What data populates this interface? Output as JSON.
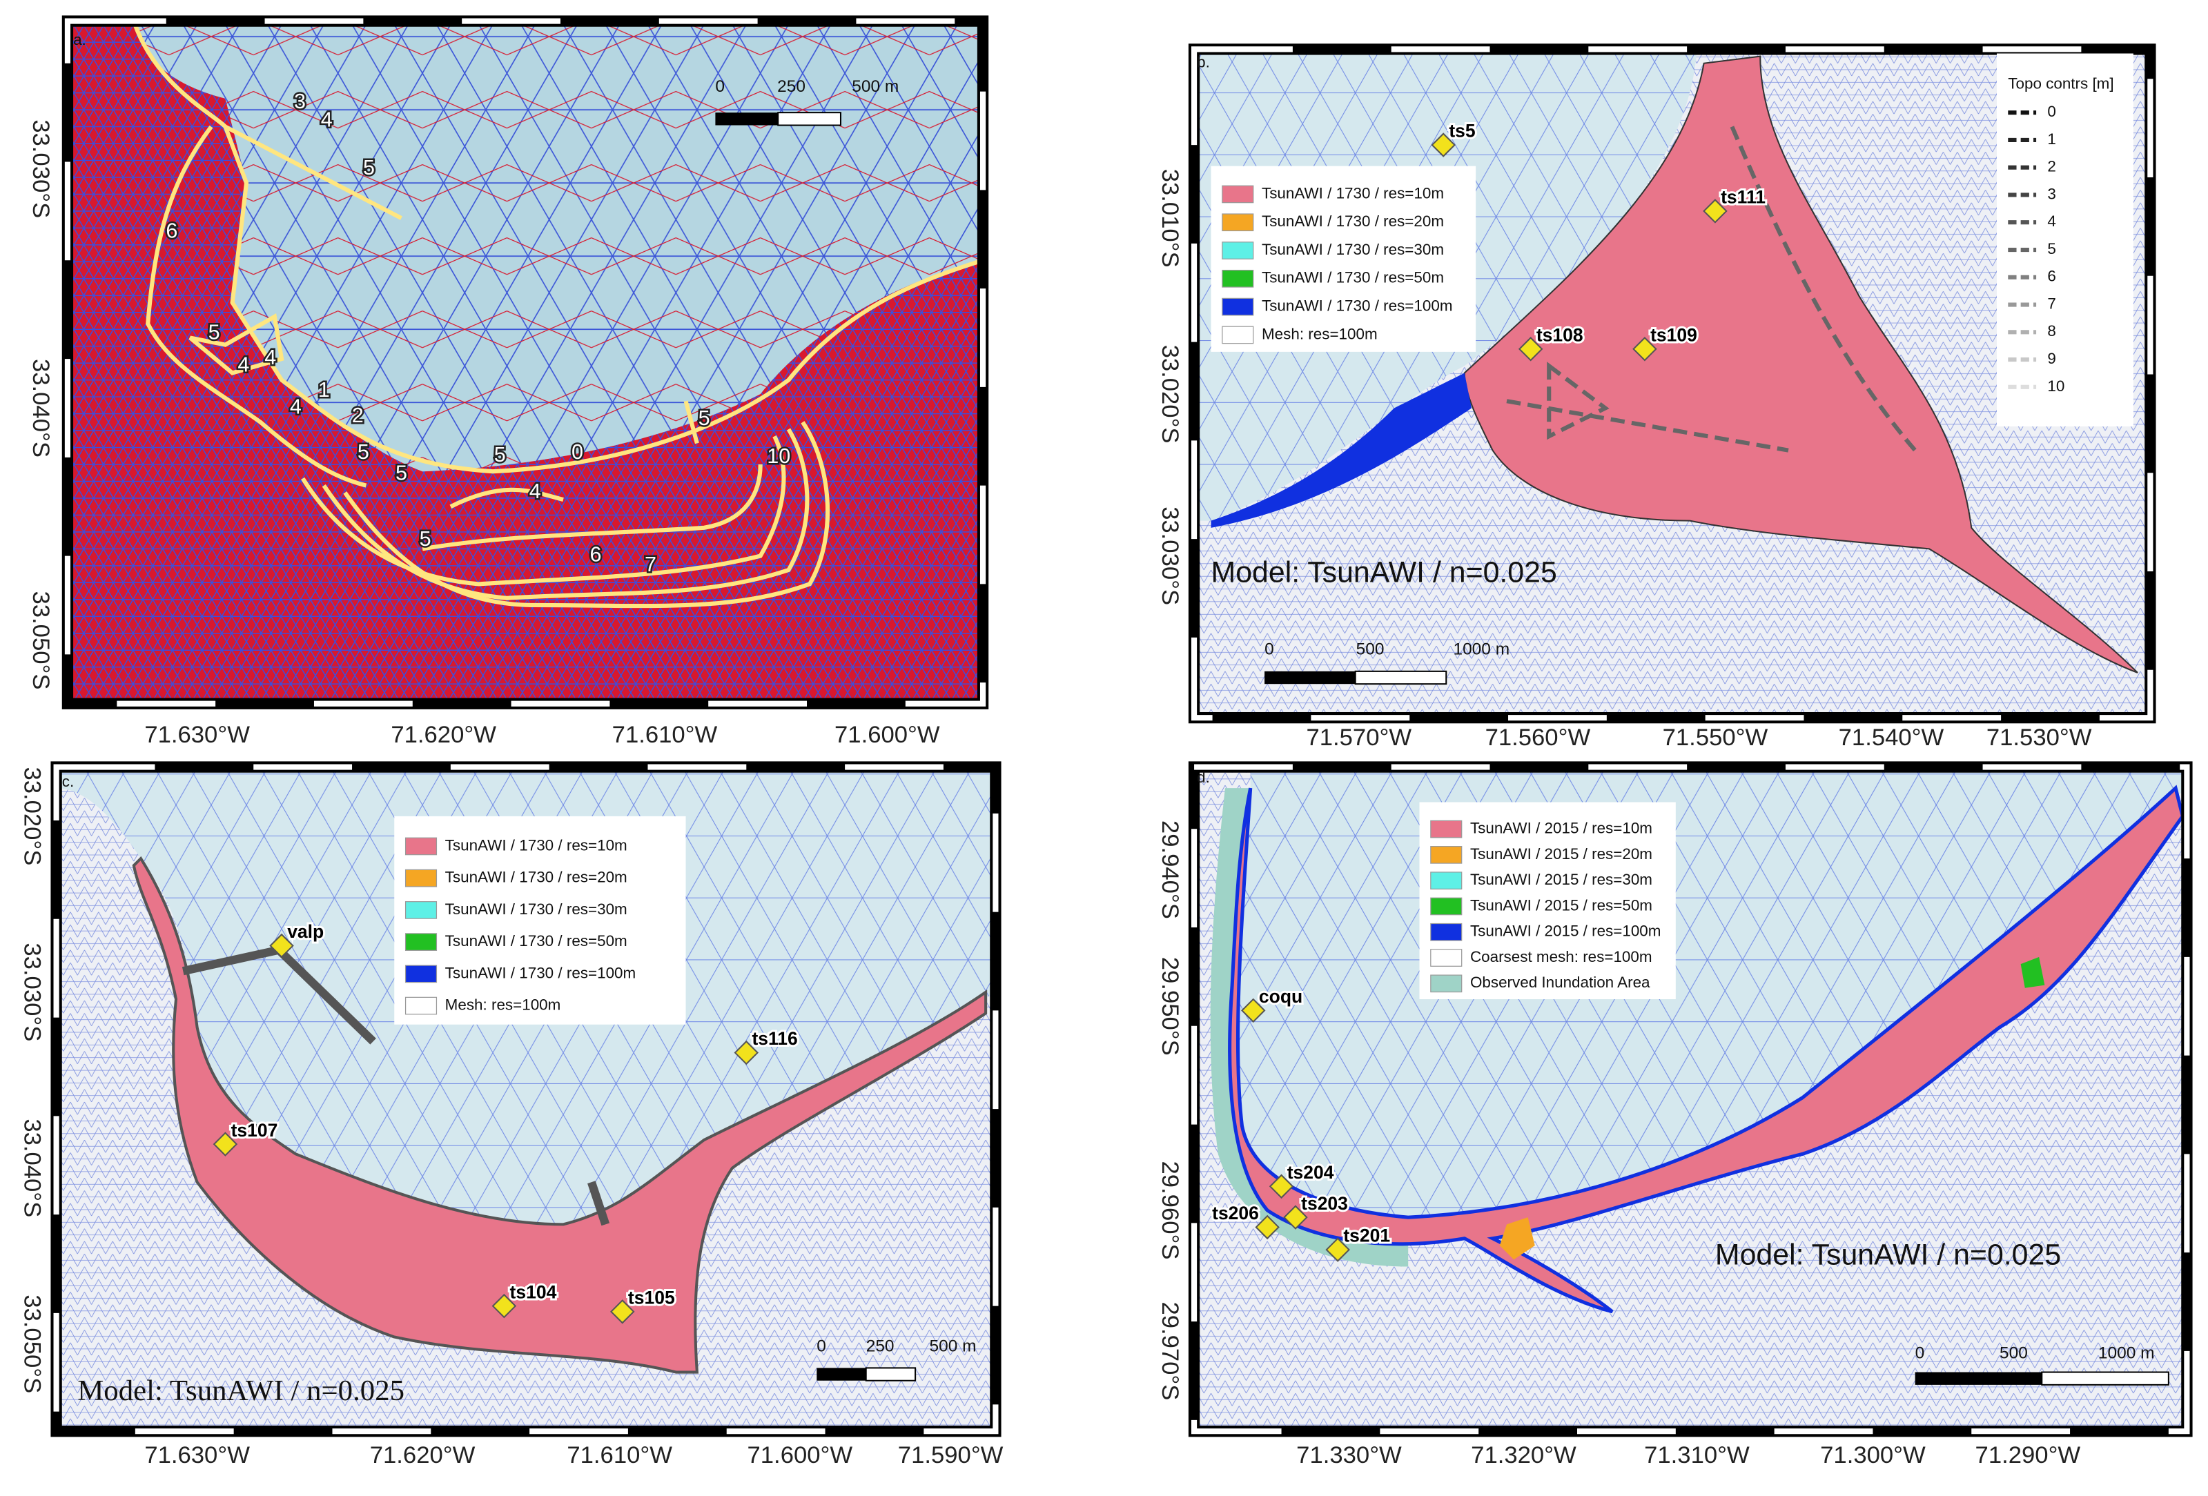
{
  "panels": [
    {
      "label": "a.",
      "x_ticks": [
        "71.630°W",
        "71.620°W",
        "71.610°W",
        "71.600°W"
      ],
      "y_ticks": [
        "33.030°S",
        "33.040°S",
        "33.050°S"
      ],
      "scalebar": [
        "0",
        "250",
        "500 m"
      ],
      "contour_labels": [
        "3",
        "4",
        "5",
        "6",
        "5",
        "4",
        "4",
        "1",
        "2",
        "4",
        "5",
        "5",
        "5",
        "0",
        "4",
        "5",
        "10",
        "5",
        "6",
        "7"
      ]
    },
    {
      "label": "b.",
      "x_ticks": [
        "71.570°W",
        "71.560°W",
        "71.550°W",
        "71.540°W",
        "71.530°W"
      ],
      "y_ticks": [
        "33.010°S",
        "33.020°S",
        "33.030°S"
      ],
      "scalebar": [
        "0",
        "500",
        "1000 m"
      ],
      "legend": [
        {
          "label": "TsunAWI / 1730 / res=10m",
          "color": "#e8758a"
        },
        {
          "label": "TsunAWI / 1730 / res=20m",
          "color": "#f5a623"
        },
        {
          "label": "TsunAWI / 1730 / res=30m",
          "color": "#5ef0e6"
        },
        {
          "label": "TsunAWI / 1730 / res=50m",
          "color": "#22c022"
        },
        {
          "label": "TsunAWI / 1730 / res=100m",
          "color": "#1030e0"
        },
        {
          "label": "Mesh: res=100m",
          "color": "#ffffff"
        }
      ],
      "topo_legend": {
        "title": "Topo contrs [m]",
        "entries": [
          {
            "label": "0",
            "color": "#111111"
          },
          {
            "label": "1",
            "color": "#222222"
          },
          {
            "label": "2",
            "color": "#333333"
          },
          {
            "label": "3",
            "color": "#444444"
          },
          {
            "label": "4",
            "color": "#555555"
          },
          {
            "label": "5",
            "color": "#666666"
          },
          {
            "label": "6",
            "color": "#808080"
          },
          {
            "label": "7",
            "color": "#999999"
          },
          {
            "label": "8",
            "color": "#b0b0b0"
          },
          {
            "label": "9",
            "color": "#c8c8c8"
          },
          {
            "label": "10",
            "color": "#dddddd"
          }
        ]
      },
      "stations": [
        "ts5",
        "ts111",
        "ts108",
        "ts109"
      ],
      "model_text": "Model: TsunAWI / n=0.025"
    },
    {
      "label": "c.",
      "x_ticks": [
        "71.630°W",
        "71.620°W",
        "71.610°W",
        "71.600°W",
        "71.590°W"
      ],
      "y_ticks": [
        "33.020°S",
        "33.030°S",
        "33.040°S",
        "33.050°S"
      ],
      "scalebar": [
        "0",
        "250",
        "500 m"
      ],
      "legend": [
        {
          "label": "TsunAWI / 1730 / res=10m",
          "color": "#e8758a"
        },
        {
          "label": "TsunAWI / 1730 / res=20m",
          "color": "#f5a623"
        },
        {
          "label": "TsunAWI / 1730 / res=30m",
          "color": "#5ef0e6"
        },
        {
          "label": "TsunAWI / 1730 / res=50m",
          "color": "#22c022"
        },
        {
          "label": "TsunAWI / 1730 / res=100m",
          "color": "#1030e0"
        },
        {
          "label": "Mesh: res=100m",
          "color": "#ffffff"
        }
      ],
      "stations": [
        "valp",
        "ts116",
        "ts107",
        "ts104",
        "ts105"
      ],
      "model_text": "Model: TsunAWI / n=0.025"
    },
    {
      "label": "d.",
      "x_ticks": [
        "71.330°W",
        "71.320°W",
        "71.310°W",
        "71.300°W",
        "71.290°W"
      ],
      "y_ticks": [
        "29.940°S",
        "29.950°S",
        "29.960°S",
        "29.970°S"
      ],
      "scalebar": [
        "0",
        "500",
        "1000 m"
      ],
      "legend": [
        {
          "label": "TsunAWI / 2015 / res=10m",
          "color": "#e8758a"
        },
        {
          "label": "TsunAWI / 2015 / res=20m",
          "color": "#f5a623"
        },
        {
          "label": "TsunAWI / 2015 / res=30m",
          "color": "#5ef0e6"
        },
        {
          "label": "TsunAWI / 2015 / res=50m",
          "color": "#22c022"
        },
        {
          "label": "TsunAWI / 2015 / res=100m",
          "color": "#1030e0"
        },
        {
          "label": "Coarsest mesh: res=100m",
          "color": "#ffffff"
        },
        {
          "label": "Observed Inundation Area",
          "color": "#9fd3c7"
        }
      ],
      "stations": [
        "coqu",
        "ts204",
        "ts203",
        "ts206",
        "ts201"
      ],
      "model_text": "Model: TsunAWI / n=0.025"
    }
  ]
}
